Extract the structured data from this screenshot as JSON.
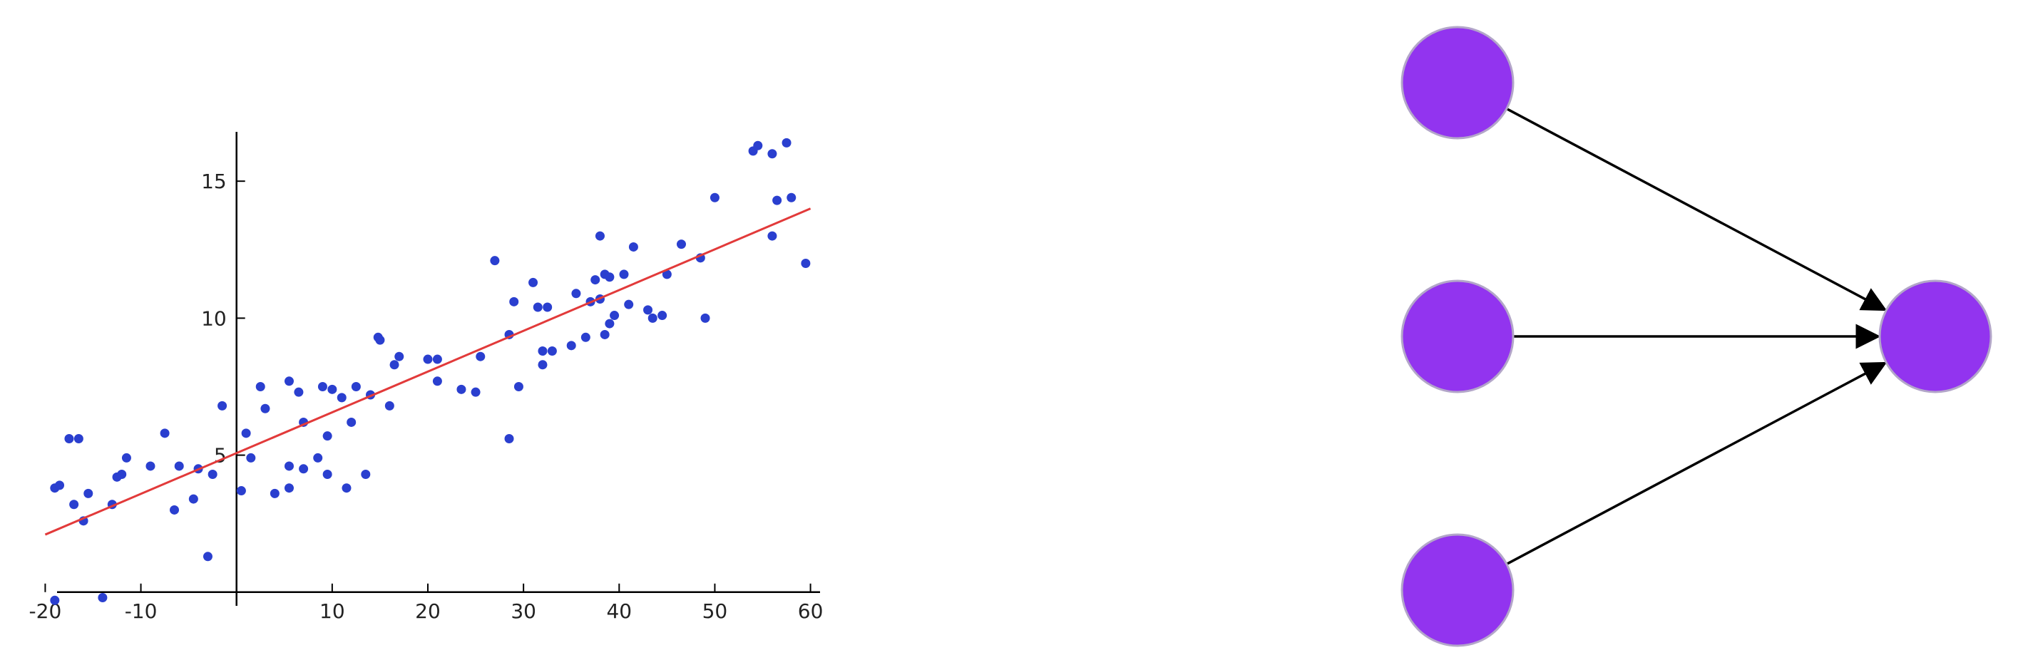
{
  "colors": {
    "point": "#2a3fcf",
    "fit_line": "#e23a3a",
    "axis": "#000000",
    "node_fill": "#9234ef",
    "node_stroke": "#b3a6c9",
    "edge": "#000000"
  },
  "chart_data": {
    "type": "scatter",
    "xlim": [
      -21,
      61
    ],
    "ylim": [
      -0.5,
      16.8
    ],
    "axes_cross": [
      0,
      0
    ],
    "grid": false,
    "x_ticks": [
      {
        "value": -20,
        "label": "-20"
      },
      {
        "value": -10,
        "label": "-10"
      },
      {
        "value": 10,
        "label": "10"
      },
      {
        "value": 20,
        "label": "20"
      },
      {
        "value": 30,
        "label": "30"
      },
      {
        "value": 40,
        "label": "40"
      },
      {
        "value": 50,
        "label": "50"
      },
      {
        "value": 60,
        "label": "60"
      }
    ],
    "y_ticks": [
      {
        "value": 5,
        "label": "5"
      },
      {
        "value": 10,
        "label": "10"
      },
      {
        "value": 15,
        "label": "15"
      }
    ],
    "fit_line": {
      "x": [
        -20,
        60
      ],
      "y": [
        2.1,
        14.0
      ]
    },
    "series": [
      {
        "points": [
          [
            -19,
            3.8
          ],
          [
            -18.5,
            3.9
          ],
          [
            -17.5,
            5.6
          ],
          [
            -17,
            3.2
          ],
          [
            -16.5,
            5.6
          ],
          [
            -16,
            2.6
          ],
          [
            -15.5,
            3.6
          ],
          [
            -13,
            3.2
          ],
          [
            -12.5,
            4.2
          ],
          [
            -11.5,
            4.9
          ],
          [
            -12,
            4.3
          ],
          [
            -9,
            4.6
          ],
          [
            -7.5,
            5.8
          ],
          [
            -6.5,
            3
          ],
          [
            -6,
            4.6
          ],
          [
            -4.5,
            3.4
          ],
          [
            -4,
            4.5
          ],
          [
            -3,
            1.3
          ],
          [
            -2.5,
            4.3
          ],
          [
            -1.5,
            6.8
          ],
          [
            0.5,
            3.7
          ],
          [
            1,
            5.8
          ],
          [
            1.5,
            4.9
          ],
          [
            2.5,
            7.5
          ],
          [
            3,
            6.7
          ],
          [
            4,
            3.6
          ],
          [
            5.5,
            7.7
          ],
          [
            5.5,
            4.6
          ],
          [
            5.5,
            3.8
          ],
          [
            6.5,
            7.3
          ],
          [
            7,
            6.2
          ],
          [
            7,
            4.5
          ],
          [
            8.5,
            4.9
          ],
          [
            9,
            7.5
          ],
          [
            9.5,
            5.7
          ],
          [
            9.5,
            4.3
          ],
          [
            10,
            7.4
          ],
          [
            11,
            7.1
          ],
          [
            11.5,
            3.8
          ],
          [
            12,
            6.2
          ],
          [
            12.5,
            7.5
          ],
          [
            13.5,
            4.3
          ],
          [
            14,
            7.2
          ],
          [
            14.8,
            9.3
          ],
          [
            15,
            9.2
          ],
          [
            16,
            6.8
          ],
          [
            16.5,
            8.3
          ],
          [
            17,
            8.6
          ],
          [
            20,
            8.5
          ],
          [
            21,
            7.7
          ],
          [
            21,
            8.5
          ],
          [
            23.5,
            7.4
          ],
          [
            25,
            7.3
          ],
          [
            25.5,
            8.6
          ],
          [
            27,
            12.1
          ],
          [
            28.5,
            5.6
          ],
          [
            28.5,
            9.4
          ],
          [
            29,
            10.6
          ],
          [
            29.5,
            7.5
          ],
          [
            31,
            11.3
          ],
          [
            31.5,
            10.4
          ],
          [
            32,
            8.3
          ],
          [
            32,
            8.8
          ],
          [
            32.5,
            10.4
          ],
          [
            33,
            8.8
          ],
          [
            35,
            9
          ],
          [
            35.5,
            10.9
          ],
          [
            36.5,
            9.3
          ],
          [
            37,
            10.6
          ],
          [
            37.5,
            11.4
          ],
          [
            38,
            10.7
          ],
          [
            38,
            13
          ],
          [
            38.5,
            9.4
          ],
          [
            38.5,
            11.6
          ],
          [
            39,
            9.8
          ],
          [
            39,
            11.5
          ],
          [
            39.5,
            10.1
          ],
          [
            40.5,
            11.6
          ],
          [
            41,
            10.5
          ],
          [
            41.5,
            12.6
          ],
          [
            43,
            10.3
          ],
          [
            43.5,
            10
          ],
          [
            44.5,
            10.1
          ],
          [
            45,
            11.6
          ],
          [
            46.5,
            12.7
          ],
          [
            48.5,
            12.2
          ],
          [
            49,
            10
          ],
          [
            50,
            14.4
          ],
          [
            54,
            16.1
          ],
          [
            54.5,
            16.3
          ],
          [
            56,
            13
          ],
          [
            56,
            16
          ],
          [
            56.5,
            14.3
          ],
          [
            57.5,
            16.4
          ],
          [
            58,
            14.4
          ],
          [
            59.5,
            12
          ],
          [
            -19,
            -0.3
          ],
          [
            -14,
            -0.2
          ]
        ]
      }
    ]
  },
  "diagram": {
    "nodes": [
      {
        "id": "input-1"
      },
      {
        "id": "input-2"
      },
      {
        "id": "input-3"
      },
      {
        "id": "output"
      }
    ],
    "edges": [
      {
        "from": "input-1",
        "to": "output"
      },
      {
        "from": "input-2",
        "to": "output"
      },
      {
        "from": "input-3",
        "to": "output"
      }
    ]
  }
}
